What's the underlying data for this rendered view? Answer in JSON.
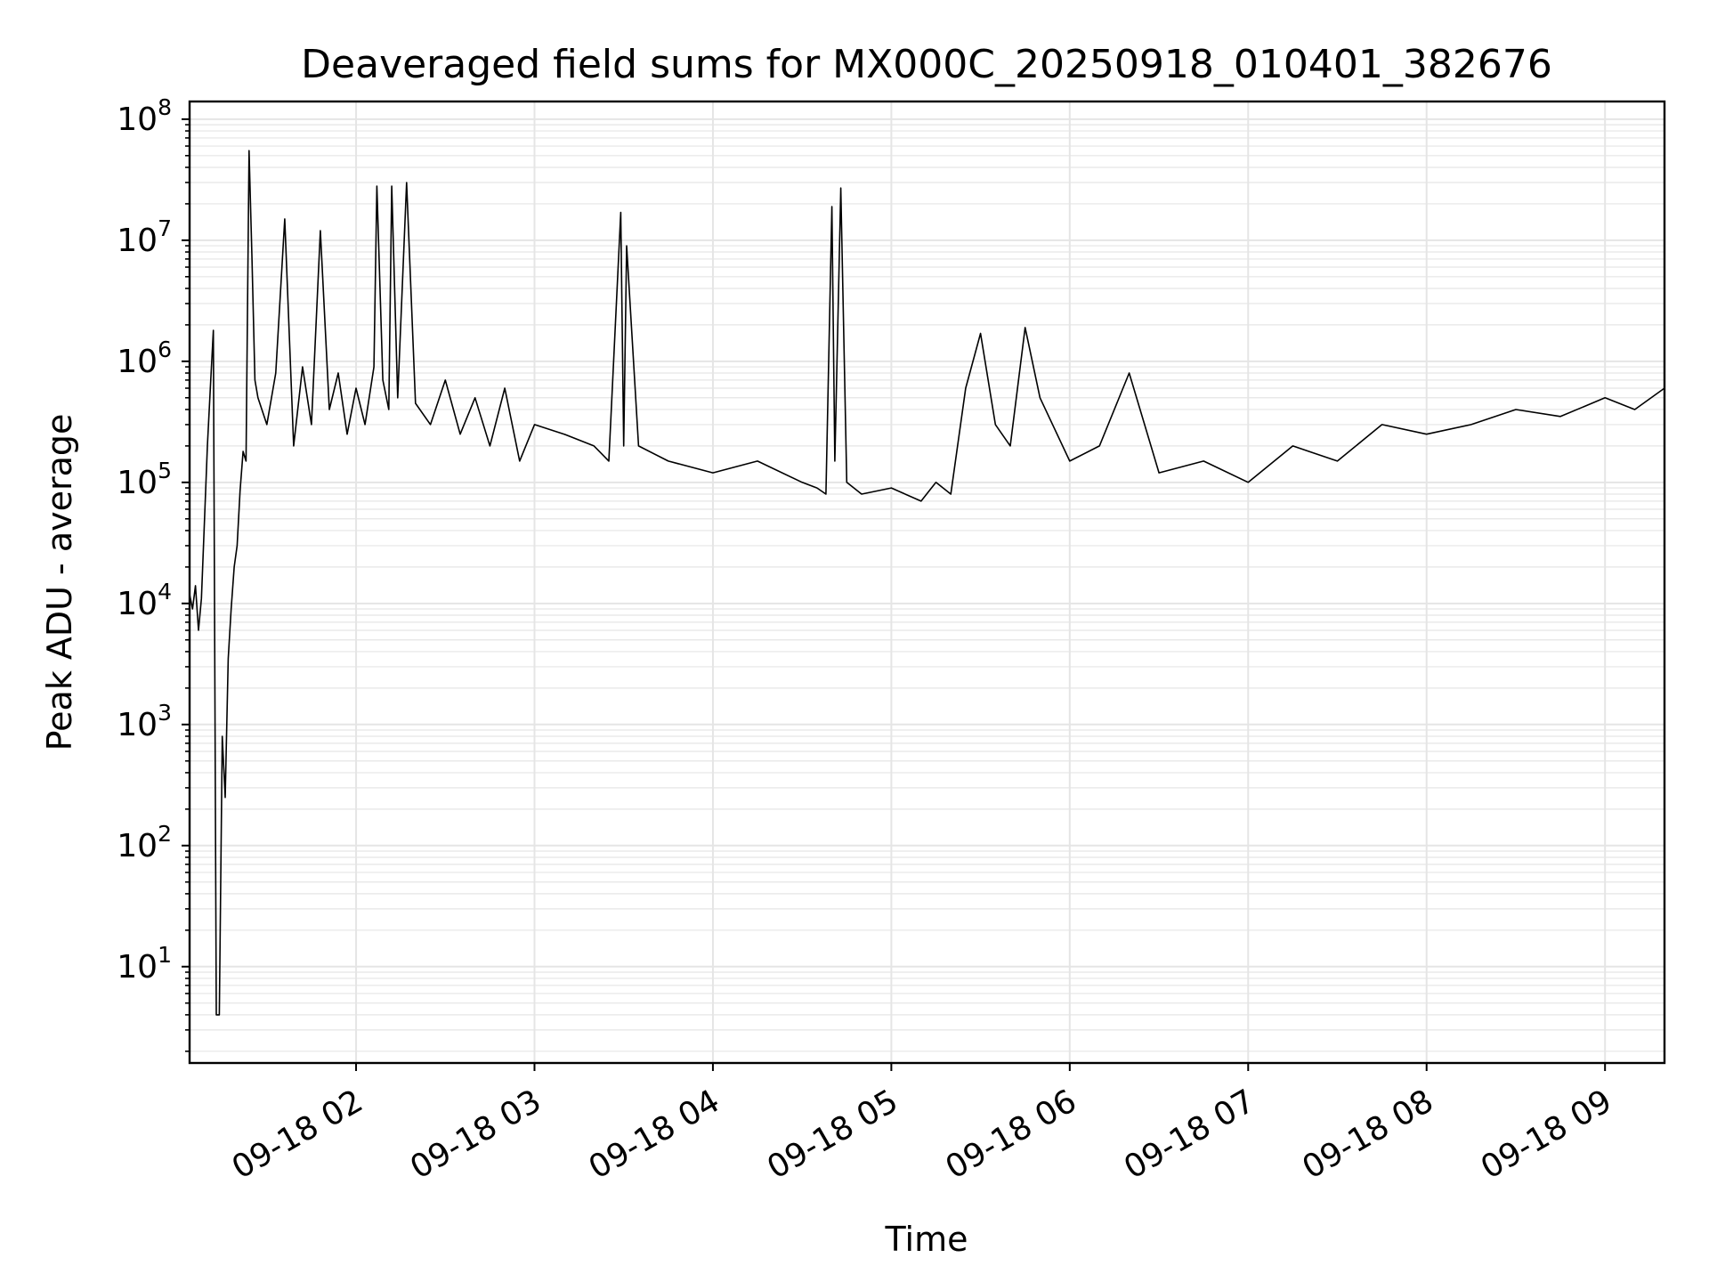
{
  "chart_data": {
    "type": "line",
    "title": "Deaveraged field sums for MX000C_20250918_010401_382676",
    "xlabel": "Time",
    "ylabel": "Peak ADU - average",
    "yscale": "log",
    "ylim": [
      1.6,
      140000000
    ],
    "grid": true,
    "line_color": "#000000",
    "grid_color": "#e5e5e5",
    "x_range": [
      "09-18 01:04:01",
      "09-18 09:20:00"
    ],
    "x_ticks": [
      {
        "value": "09-18 02:00",
        "label": "09-18 02"
      },
      {
        "value": "09-18 03:00",
        "label": "09-18 03"
      },
      {
        "value": "09-18 04:00",
        "label": "09-18 04"
      },
      {
        "value": "09-18 05:00",
        "label": "09-18 05"
      },
      {
        "value": "09-18 06:00",
        "label": "09-18 06"
      },
      {
        "value": "09-18 07:00",
        "label": "09-18 07"
      },
      {
        "value": "09-18 08:00",
        "label": "09-18 08"
      },
      {
        "value": "09-18 09:00",
        "label": "09-18 09"
      }
    ],
    "y_ticks": [
      {
        "value": 10,
        "base": "10",
        "exp": "1"
      },
      {
        "value": 100,
        "base": "10",
        "exp": "2"
      },
      {
        "value": 1000,
        "base": "10",
        "exp": "3"
      },
      {
        "value": 10000,
        "base": "10",
        "exp": "4"
      },
      {
        "value": 100000,
        "base": "10",
        "exp": "5"
      },
      {
        "value": 1000000,
        "base": "10",
        "exp": "6"
      },
      {
        "value": 10000000,
        "base": "10",
        "exp": "7"
      },
      {
        "value": 100000000,
        "base": "10",
        "exp": "8"
      }
    ],
    "series": [
      {
        "x": [
          "09-18 01:04",
          "09-18 01:05",
          "09-18 01:06",
          "09-18 01:07",
          "09-18 01:08",
          "09-18 01:10",
          "09-18 01:11",
          "09-18 01:12",
          "09-18 01:13",
          "09-18 01:14",
          "09-18 01:15",
          "09-18 01:16",
          "09-18 01:17",
          "09-18 01:18",
          "09-18 01:19",
          "09-18 01:20",
          "09-18 01:21",
          "09-18 01:22",
          "09-18 01:23",
          "09-18 01:24",
          "09-18 01:25",
          "09-18 01:26",
          "09-18 01:27",
          "09-18 01:30",
          "09-18 01:33",
          "09-18 01:36",
          "09-18 01:39",
          "09-18 01:42",
          "09-18 01:45",
          "09-18 01:48",
          "09-18 01:51",
          "09-18 01:54",
          "09-18 01:57",
          "09-18 02:00",
          "09-18 02:03",
          "09-18 02:06",
          "09-18 02:07",
          "09-18 02:09",
          "09-18 02:11",
          "09-18 02:12",
          "09-18 02:14",
          "09-18 02:17",
          "09-18 02:20",
          "09-18 02:25",
          "09-18 02:30",
          "09-18 02:35",
          "09-18 02:40",
          "09-18 02:45",
          "09-18 02:50",
          "09-18 02:55",
          "09-18 03:00",
          "09-18 03:10",
          "09-18 03:20",
          "09-18 03:25",
          "09-18 03:29",
          "09-18 03:30",
          "09-18 03:31",
          "09-18 03:35",
          "09-18 03:45",
          "09-18 04:00",
          "09-18 04:15",
          "09-18 04:30",
          "09-18 04:35",
          "09-18 04:38",
          "09-18 04:40",
          "09-18 04:41",
          "09-18 04:43",
          "09-18 04:45",
          "09-18 04:50",
          "09-18 05:00",
          "09-18 05:10",
          "09-18 05:15",
          "09-18 05:20",
          "09-18 05:25",
          "09-18 05:30",
          "09-18 05:35",
          "09-18 05:40",
          "09-18 05:45",
          "09-18 05:50",
          "09-18 06:00",
          "09-18 06:10",
          "09-18 06:20",
          "09-18 06:30",
          "09-18 06:45",
          "09-18 07:00",
          "09-18 07:15",
          "09-18 07:30",
          "09-18 07:45",
          "09-18 08:00",
          "09-18 08:15",
          "09-18 08:30",
          "09-18 08:45",
          "09-18 09:00",
          "09-18 09:10",
          "09-18 09:20"
        ],
        "y": [
          12000,
          9000,
          14000,
          6000,
          11000,
          200000,
          600000,
          1800000,
          4,
          4,
          800,
          250,
          3500,
          9000,
          20000,
          30000,
          85000,
          180000,
          150000,
          55000000,
          7000000,
          700000,
          500000,
          300000,
          800000,
          15000000,
          200000,
          900000,
          300000,
          12000000,
          400000,
          800000,
          250000,
          600000,
          300000,
          900000,
          28000000,
          700000,
          400000,
          28000000,
          500000,
          30000000,
          450000,
          300000,
          700000,
          250000,
          500000,
          200000,
          600000,
          150000,
          300000,
          250000,
          200000,
          150000,
          17000000,
          200000,
          9000000,
          200000,
          150000,
          120000,
          150000,
          100000,
          90000,
          80000,
          19000000,
          150000,
          27000000,
          100000,
          80000,
          90000,
          70000,
          100000,
          80000,
          600000,
          1700000,
          300000,
          200000,
          1900000,
          500000,
          150000,
          200000,
          800000,
          120000,
          150000,
          100000,
          200000,
          150000,
          300000,
          250000,
          300000,
          400000,
          350000,
          500000,
          400000,
          600000
        ]
      }
    ]
  }
}
